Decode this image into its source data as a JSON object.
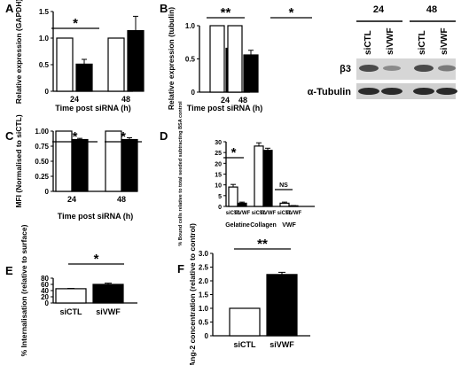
{
  "panels": [
    {
      "key": "A",
      "letter": "A",
      "chart_data": {
        "type": "bar",
        "categories": [
          "24",
          "48"
        ],
        "series": [
          {
            "name": "siCTL",
            "values": [
              1.0,
              1.0
            ],
            "errors": [
              0,
              0
            ],
            "color": "#ffffff"
          },
          {
            "name": "siVWF",
            "values": [
              0.51,
              1.14
            ],
            "errors": [
              0.09,
              0.27
            ],
            "color": "#000000"
          }
        ],
        "ylabel": "Relative expression (GAPDH)",
        "xlabel": "Time post siRNA (h)",
        "ylim": [
          0,
          1.5
        ],
        "yticks": [
          "0",
          "0.5",
          "1.0",
          "1.5"
        ],
        "significance": [
          {
            "group": 0,
            "label": "*"
          }
        ]
      }
    },
    {
      "key": "B",
      "letter": "B",
      "chart_data": {
        "type": "bar",
        "categories": [
          "24",
          "48"
        ],
        "series": [
          {
            "name": "siCTL",
            "values": [
              1.0,
              1.0
            ],
            "errors": [
              0,
              0
            ],
            "color": "#ffffff"
          },
          {
            "name": "siVWF",
            "values": [
              0.66,
              0.56
            ],
            "errors": [
              0.02,
              0.07
            ],
            "color": "#000000"
          }
        ],
        "ylabel": "Relative expression (tubulin)",
        "xlabel": "Time post siRNA (h)",
        "ylim": [
          0,
          1.0
        ],
        "yticks": [
          "0",
          "0.5",
          "1.0"
        ],
        "significance": [
          {
            "group": 0,
            "label": "**"
          },
          {
            "group": 1,
            "label": "*"
          }
        ]
      }
    },
    {
      "key": "C",
      "letter": "C",
      "chart_data": {
        "type": "bar",
        "categories": [
          "24",
          "48"
        ],
        "series": [
          {
            "name": "siCTL",
            "values": [
              1.0,
              1.0
            ],
            "errors": [
              0,
              0
            ],
            "color": "#ffffff"
          },
          {
            "name": "siVWF",
            "values": [
              0.86,
              0.86
            ],
            "errors": [
              0.02,
              0.03
            ],
            "color": "#000000"
          }
        ],
        "ylabel": "MFI (Normalised to siCTL)",
        "xlabel": "Time post siRNA (h)",
        "ylim": [
          0,
          1.0
        ],
        "yticks": [
          "0",
          "0.25",
          "0.50",
          "0.75",
          "1.00"
        ],
        "significance": [
          {
            "group": 0,
            "label": "*"
          },
          {
            "group": 1,
            "label": "*"
          }
        ]
      }
    },
    {
      "key": "D",
      "letter": "D",
      "chart_data": {
        "type": "bar",
        "categories": [
          "Gelatine",
          "Collagen",
          "VWF"
        ],
        "series": [
          {
            "name": "siCTL",
            "values": [
              9,
              28,
              1.5
            ],
            "errors": [
              1.2,
              1.5,
              0.5
            ],
            "color": "#ffffff"
          },
          {
            "name": "siVWF",
            "values": [
              1.5,
              26,
              0.3
            ],
            "errors": [
              0.5,
              1.0,
              0.1
            ],
            "color": "#000000"
          }
        ],
        "bar_labels": [
          "siCTL",
          "siVWF"
        ],
        "ylabel": "% Bound cells relative to total seeded subtracting BSA control",
        "ylim": [
          0,
          30
        ],
        "yticks": [
          "0",
          "5",
          "10",
          "15",
          "20",
          "25",
          "30"
        ],
        "significance": [
          {
            "group": 0,
            "label": "*"
          },
          {
            "group": 2,
            "label": "NS"
          }
        ]
      }
    },
    {
      "key": "E",
      "letter": "E",
      "chart_data": {
        "type": "bar",
        "categories": [
          "siCTL",
          "siVWF"
        ],
        "series": [
          {
            "name": "siCTL",
            "values": [
              46,
              60
            ],
            "errors": [
              1,
              4
            ],
            "fills": [
              "#ffffff",
              "#000000"
            ]
          }
        ],
        "ylabel": "% Internalisation (relative to surface)",
        "ylim": [
          0,
          80
        ],
        "yticks": [
          "0",
          "20",
          "40",
          "60",
          "80"
        ],
        "significance": [
          {
            "label": "*"
          }
        ]
      }
    },
    {
      "key": "F",
      "letter": "F",
      "chart_data": {
        "type": "bar",
        "categories": [
          "siCTL",
          "siVWF"
        ],
        "series": [
          {
            "name": "siCTL",
            "values": [
              1.0,
              2.23
            ],
            "errors": [
              0,
              0.08
            ],
            "fills": [
              "#ffffff",
              "#000000"
            ]
          }
        ],
        "ylabel": "Ang-2 concentration (relative to control)",
        "ylim": [
          0,
          3.0
        ],
        "yticks": [
          "0",
          "0.5",
          "1.0",
          "1.5",
          "2.0",
          "2.5",
          "3.0"
        ],
        "significance": [
          {
            "label": "**"
          }
        ]
      }
    }
  ],
  "blot": {
    "timepoints": [
      "24",
      "48"
    ],
    "lanes": [
      "siCTL",
      "siVWF",
      "siCTL",
      "siVWF"
    ],
    "band_labels": [
      "β3",
      "α-Tubulin"
    ]
  }
}
